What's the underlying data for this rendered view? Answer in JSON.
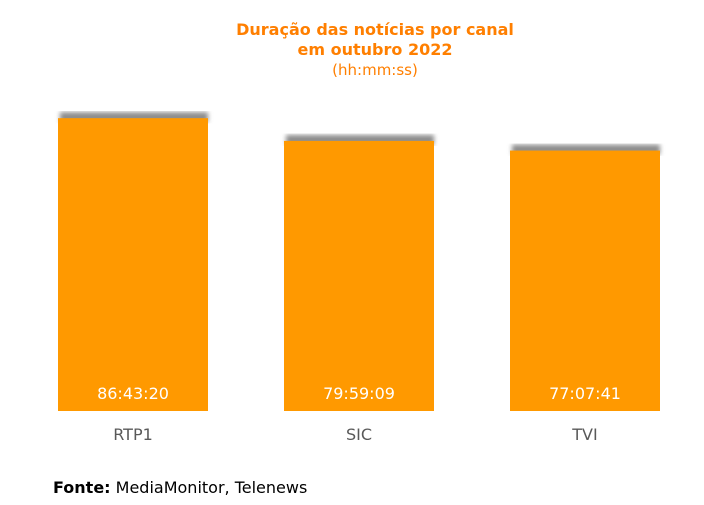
{
  "chart_data": {
    "type": "bar",
    "title": "Duração das notícias por canal",
    "title_line2": "em outubro 2022",
    "subtitle": "(hh:mm:ss)",
    "categories": [
      "RTP1",
      "SIC",
      "TVI"
    ],
    "values": [
      86.7222,
      79.9858,
      77.1281
    ],
    "data_labels": [
      "86:43:20",
      "79:59:09",
      "77:07:41"
    ],
    "xlabel": "",
    "ylabel": "",
    "ylim": [
      0,
      92.1
    ],
    "grid": false,
    "legend": "none",
    "bar_color": "#ff9900",
    "shadow_color": "#8c8c8c",
    "label_color": "#ffffff",
    "tick_label_color": "#595959"
  },
  "source": {
    "label": "Fonte:",
    "text": "MediaMonitor, Telenews"
  },
  "colors": {
    "title": "#ff7f00",
    "source_text": "#000000"
  }
}
